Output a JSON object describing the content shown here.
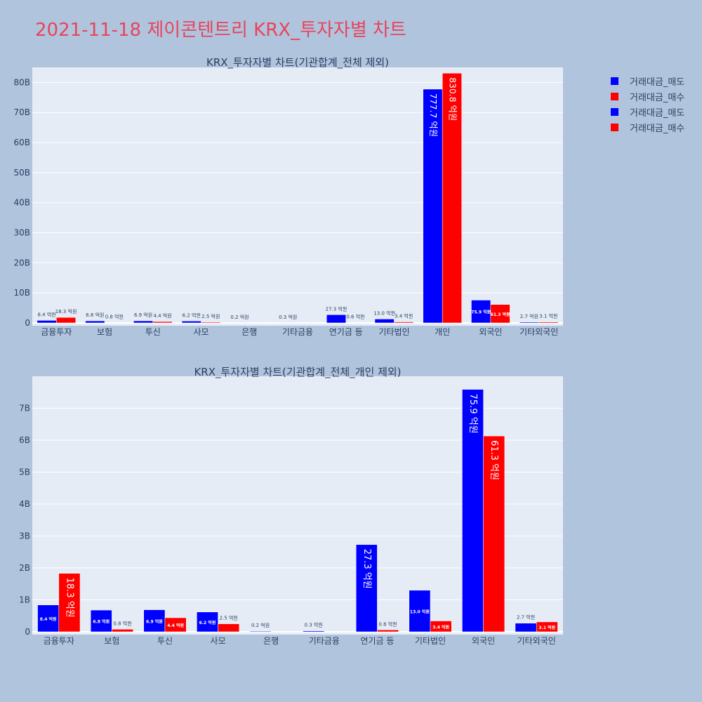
{
  "page": {
    "title": "2021-11-18 제이콘텐트리 KRX_투자자별 차트"
  },
  "legend": [
    {
      "label": "거래대금_매도",
      "color": "#0000ff"
    },
    {
      "label": "거래대금_매수",
      "color": "#ff0000"
    },
    {
      "label": "거래대금_매도",
      "color": "#0000ff"
    },
    {
      "label": "거래대금_매수",
      "color": "#ff0000"
    }
  ],
  "colors": {
    "sell": "#0000ff",
    "buy": "#ff0000",
    "plot_bg": "#e5ecf6",
    "page_bg": "#b0c4de"
  },
  "chart_data": [
    {
      "type": "bar",
      "title": "KRX_투자자별 차트(기관합계_전체 제외)",
      "categories": [
        "금융투자",
        "보험",
        "투신",
        "사모",
        "은행",
        "기타금융",
        "연기금 등",
        "기타법인",
        "개인",
        "외국인",
        "기타외국인"
      ],
      "ylim": [
        0,
        85
      ],
      "yticks": [
        0,
        10,
        20,
        30,
        40,
        50,
        60,
        70,
        80
      ],
      "ytick_labels": [
        "0",
        "10B",
        "20B",
        "30B",
        "40B",
        "50B",
        "60B",
        "70B",
        "80B"
      ],
      "series": [
        {
          "name": "거래대금_매도",
          "color": "#0000ff",
          "values": [
            0.84,
            0.68,
            0.69,
            0.62,
            0.02,
            0.03,
            2.73,
            1.3,
            77.77,
            7.59,
            0.27
          ],
          "labels": [
            "8.4 억원",
            "6.8 억원",
            "6.9 억원",
            "6.2 억원",
            "0.2 억원",
            "0.3 억원",
            "27.3 억원",
            "13.0 억원",
            "777.7 억원",
            "75.9 억원",
            "2.7 억원"
          ]
        },
        {
          "name": "거래대금_매수",
          "color": "#ff0000",
          "values": [
            1.83,
            0.08,
            0.44,
            0.25,
            0,
            0,
            0.06,
            0.34,
            83.08,
            6.13,
            0.31
          ],
          "labels": [
            "18.3 억원",
            "0.8 억원",
            "4.4 억원",
            "2.5 억원",
            "",
            "",
            "0.6 억원",
            "3.4 억원",
            "830.8 억원",
            "61.3 억원",
            "3.1 억원"
          ]
        }
      ]
    },
    {
      "type": "bar",
      "title": "KRX_투자자별 차트(기관합계_전체_개인 제외)",
      "categories": [
        "금융투자",
        "보험",
        "투신",
        "사모",
        "은행",
        "기타금융",
        "연기금 등",
        "기타법인",
        "외국인",
        "기타외국인"
      ],
      "ylim": [
        0,
        8.0
      ],
      "yticks": [
        0,
        1,
        2,
        3,
        4,
        5,
        6,
        7
      ],
      "ytick_labels": [
        "0",
        "1B",
        "2B",
        "3B",
        "4B",
        "5B",
        "6B",
        "7B"
      ],
      "series": [
        {
          "name": "거래대금_매도",
          "color": "#0000ff",
          "values": [
            0.84,
            0.68,
            0.69,
            0.62,
            0.02,
            0.03,
            2.73,
            1.3,
            7.59,
            0.27
          ],
          "labels": [
            "8.4 억원",
            "6.8 억원",
            "6.9 억원",
            "6.2 억원",
            "0.2 억원",
            "0.3 억원",
            "27.3 억원",
            "13.0 억원",
            "75.9 억원",
            "2.7 억원"
          ]
        },
        {
          "name": "거래대금_매수",
          "color": "#ff0000",
          "values": [
            1.83,
            0.08,
            0.44,
            0.25,
            0,
            0,
            0.06,
            0.34,
            6.13,
            0.31
          ],
          "labels": [
            "18.3 억원",
            "0.8 억원",
            "4.4 억원",
            "2.5 억원",
            "",
            "",
            "0.6 억원",
            "3.4 억원",
            "61.3 억원",
            "3.1 억원"
          ]
        }
      ]
    }
  ]
}
